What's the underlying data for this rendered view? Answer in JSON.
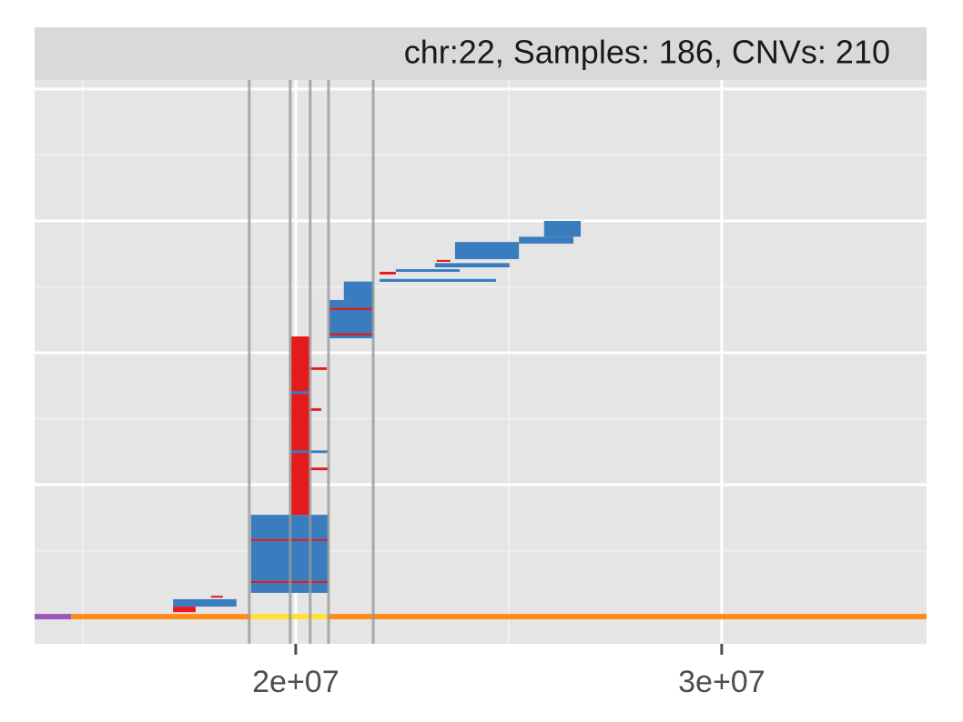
{
  "chart_data": {
    "type": "cnv",
    "title": "chr:22, Samples: 186, CNVs: 210",
    "xlim": [
      13870000,
      34810000
    ],
    "xticks": [
      {
        "value": 20000000,
        "label": "2e+07"
      },
      {
        "value": 30000000,
        "label": "3e+07"
      }
    ],
    "xminor": [
      15000000,
      25000000
    ],
    "ylim": [
      -10.3,
      203.4
    ],
    "yticks": [
      0,
      50,
      100,
      150,
      200
    ],
    "yminor": [
      25,
      75,
      125,
      175
    ],
    "grid": true,
    "regions": [
      18910000,
      19870000,
      20340000,
      20770000,
      21820000
    ],
    "region_color": "#999999",
    "bands": [
      {
        "start": 13870000,
        "end": 14730000,
        "color": "#9b59b6"
      },
      {
        "start": 14730000,
        "end": 18910000,
        "color": "#ff8c1a"
      },
      {
        "start": 18910000,
        "end": 20770000,
        "color": "#ffe033"
      },
      {
        "start": 20770000,
        "end": 34810000,
        "color": "#ff8c1a"
      }
    ],
    "segments": [
      {
        "start": 17120000,
        "end": 18610000,
        "y0": 3.8,
        "y1": 6.6,
        "color": "#3a7dbf"
      },
      {
        "start": 17120000,
        "end": 17650000,
        "y0": 1.7,
        "y1": 3.8,
        "color": "#e41a1c"
      },
      {
        "start": 18010000,
        "end": 18290000,
        "y0": 7.2,
        "y1": 7.9,
        "color": "#e41a1c"
      },
      {
        "start": 18950000,
        "end": 20770000,
        "y0": 9,
        "y1": 38.6,
        "color": "#3a7dbf"
      },
      {
        "start": 18950000,
        "end": 20770000,
        "y0": 28.7,
        "y1": 29.4,
        "color": "#e41a1c"
      },
      {
        "start": 18950000,
        "end": 20770000,
        "y0": 12.8,
        "y1": 13.5,
        "color": "#e41a1c"
      },
      {
        "start": 19890000,
        "end": 20320000,
        "y0": 38.6,
        "y1": 106.2,
        "color": "#e41a1c"
      },
      {
        "start": 19890000,
        "end": 20730000,
        "y0": 93.5,
        "y1": 94.5,
        "color": "#e41a1c"
      },
      {
        "start": 19890000,
        "end": 20770000,
        "y0": 55.5,
        "y1": 56.5,
        "color": "#e41a1c"
      },
      {
        "start": 19890000,
        "end": 20600000,
        "y0": 78,
        "y1": 79,
        "color": "#e41a1c"
      },
      {
        "start": 19890000,
        "end": 20750000,
        "y0": 62,
        "y1": 63,
        "color": "#3a7dbf"
      },
      {
        "start": 19890000,
        "end": 20320000,
        "y0": 84.4,
        "y1": 85.4,
        "color": "#3a7dbf"
      },
      {
        "start": 20790000,
        "end": 21820000,
        "y0": 105.5,
        "y1": 120,
        "color": "#3a7dbf"
      },
      {
        "start": 21130000,
        "end": 21820000,
        "y0": 120,
        "y1": 127,
        "color": "#3a7dbf"
      },
      {
        "start": 20790000,
        "end": 21820000,
        "y0": 116.2,
        "y1": 117,
        "color": "#e41a1c"
      },
      {
        "start": 20790000,
        "end": 21820000,
        "y0": 106.6,
        "y1": 107.4,
        "color": "#e41a1c"
      },
      {
        "start": 21970000,
        "end": 24700000,
        "y0": 126.9,
        "y1": 128,
        "color": "#3a7dbf"
      },
      {
        "start": 21970000,
        "end": 22350000,
        "y0": 129.7,
        "y1": 130.7,
        "color": "#e41a1c"
      },
      {
        "start": 22350000,
        "end": 23850000,
        "y0": 130.7,
        "y1": 131.7,
        "color": "#3a7dbf"
      },
      {
        "start": 23270000,
        "end": 25020000,
        "y0": 132.4,
        "y1": 134,
        "color": "#3a7dbf"
      },
      {
        "start": 23310000,
        "end": 23630000,
        "y0": 134.5,
        "y1": 135.2,
        "color": "#e41a1c"
      },
      {
        "start": 23740000,
        "end": 25240000,
        "y0": 135.5,
        "y1": 142,
        "color": "#3a7dbf"
      },
      {
        "start": 25240000,
        "end": 26520000,
        "y0": 141.4,
        "y1": 144,
        "color": "#3a7dbf"
      },
      {
        "start": 25830000,
        "end": 26690000,
        "y0": 144,
        "y1": 150,
        "color": "#3a7dbf"
      }
    ]
  }
}
